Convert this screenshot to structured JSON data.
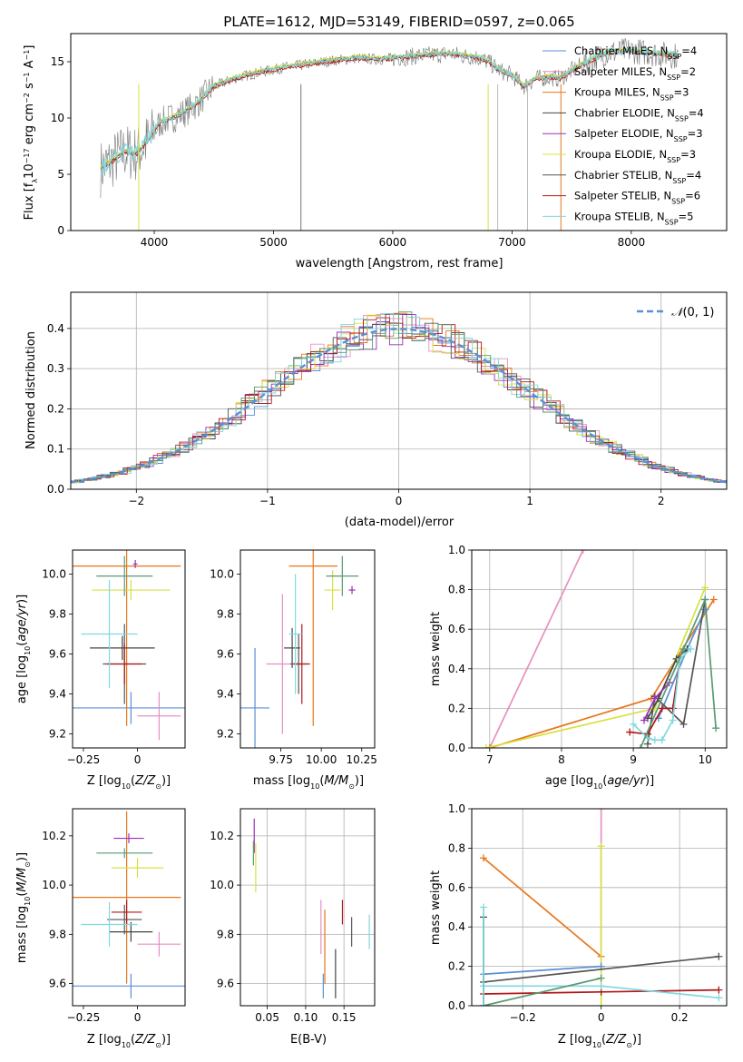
{
  "title": "PLATE=1612, MJD=53149, FIBERID=0597, z=0.065",
  "colors": {
    "Chabrier MILES": "#5b8fd8",
    "Salpeter MILES": "#e88fc0",
    "Kroupa MILES": "#e8761a",
    "Chabrier ELODIE": "#444444",
    "Salpeter ELODIE": "#9b30b8",
    "Kroupa ELODIE": "#d8e040",
    "Chabrier STELIB": "#555555",
    "Salpeter STELIB": "#b01818",
    "Kroupa STELIB": "#80d8e0",
    "green": "#5a9a70",
    "normal": "#5b8fd8"
  },
  "chart_data": [
    {
      "id": "spectrum",
      "type": "line",
      "xlabel": "wavelength [Angstrom, rest frame]",
      "ylabel": "Flux [f_λ10^-17 erg cm^-2 s^-1 A^-1]",
      "xlim": [
        3300,
        8800
      ],
      "ylim": [
        0,
        17.5
      ],
      "xticks": [
        4000,
        5000,
        6000,
        7000,
        8000
      ],
      "yticks": [
        0,
        5,
        10,
        15
      ],
      "legend_position": "right",
      "legend": [
        {
          "label": "Chabrier MILES, N_SSP=4",
          "color": "#5b8fd8"
        },
        {
          "label": "Salpeter MILES, N_SSP=2",
          "color": "#e88fc0"
        },
        {
          "label": "Kroupa MILES, N_SSP=3",
          "color": "#e8761a"
        },
        {
          "label": "Chabrier ELODIE, N_SSP=4",
          "color": "#444444"
        },
        {
          "label": "Salpeter ELODIE, N_SSP=3",
          "color": "#9b30b8"
        },
        {
          "label": "Kroupa ELODIE, N_SSP=3",
          "color": "#d8e040"
        },
        {
          "label": "Chabrier STELIB, N_SSP=4",
          "color": "#555555"
        },
        {
          "label": "Salpeter STELIB, N_SSP=6",
          "color": "#b01818"
        },
        {
          "label": "Kroupa STELIB, N_SSP=5",
          "color": "#80d8e0"
        }
      ],
      "model_curve": {
        "x": [
          3550,
          3650,
          3750,
          3850,
          3950,
          4050,
          4150,
          4250,
          4350,
          4500,
          4700,
          4900,
          5100,
          5300,
          5500,
          5700,
          5900,
          6100,
          6300,
          6500,
          6600,
          6700,
          6800,
          6900,
          7000,
          7100,
          7200,
          7300,
          7400,
          7500,
          7600,
          7800,
          8000,
          8200,
          8400
        ],
        "y": [
          5.5,
          6.2,
          7.0,
          6.8,
          8.0,
          9.6,
          10.0,
          10.5,
          11.2,
          12.8,
          13.6,
          14.1,
          14.5,
          14.8,
          15.1,
          15.3,
          15.2,
          15.4,
          15.6,
          15.7,
          15.5,
          15.4,
          15.0,
          14.2,
          13.8,
          12.8,
          13.5,
          13.6,
          13.5,
          14.2,
          14.8,
          15.8,
          16.0,
          15.7,
          15.5
        ]
      }
    },
    {
      "id": "residuals",
      "type": "line",
      "xlabel": "(data-model)/error",
      "ylabel": "Normed distribution",
      "xlim": [
        -2.5,
        2.5
      ],
      "ylim": [
        0,
        0.49
      ],
      "xticks": [
        -2,
        -1,
        0,
        1,
        2
      ],
      "yticks": [
        0.0,
        0.1,
        0.2,
        0.3,
        0.4
      ],
      "legend": [
        {
          "label": "𝒩(0, 1)",
          "style": "dashed",
          "color": "#5b8fd8"
        }
      ],
      "legend_position": "upper right",
      "grid": true,
      "histogram_bin_width": 0.1
    },
    {
      "id": "age-vs-Z",
      "type": "scatter",
      "xlabel": "Z [log10(Z/Z⊙)]",
      "ylabel": "age  [log10(age/yr)]",
      "xlim": [
        -0.3,
        0.22
      ],
      "ylim": [
        9.13,
        10.12
      ],
      "xticks": [
        -0.25,
        0.0
      ],
      "yticks": [
        9.2,
        9.4,
        9.6,
        9.8,
        10.0
      ],
      "points": [
        {
          "model": "Chabrier MILES",
          "x": -0.03,
          "y": 9.33,
          "xerr": 0.28,
          "yerr": 0.08
        },
        {
          "model": "Salpeter MILES",
          "x": 0.1,
          "y": 9.29,
          "xerr": 0.1,
          "yerr": 0.12
        },
        {
          "model": "Kroupa MILES",
          "x": -0.05,
          "y": 10.04,
          "xerr": 0.25,
          "yerr": 0.8
        },
        {
          "model": "Chabrier ELODIE",
          "x": -0.07,
          "y": 9.63,
          "xerr": 0.15,
          "yerr": 0.06
        },
        {
          "model": "Salpeter ELODIE",
          "x": -0.01,
          "y": 10.05,
          "xerr": 0.01,
          "yerr": 0.02
        },
        {
          "model": "Kroupa ELODIE",
          "x": -0.03,
          "y": 9.92,
          "xerr": 0.18,
          "yerr": 0.05
        },
        {
          "model": "Chabrier STELIB",
          "x": -0.06,
          "y": 9.55,
          "xerr": 0.1,
          "yerr": 0.2
        },
        {
          "model": "Salpeter STELIB",
          "x": -0.06,
          "y": 9.55,
          "xerr": 0.08,
          "yerr": 0.1
        },
        {
          "model": "Kroupa STELIB",
          "x": -0.13,
          "y": 9.7,
          "xerr": 0.13,
          "yerr": 0.27
        },
        {
          "model": "green",
          "x": -0.06,
          "y": 9.99,
          "xerr": 0.13,
          "yerr": 0.1
        }
      ]
    },
    {
      "id": "age-vs-mass",
      "type": "scatter",
      "xlabel": "mass [log10(M/M⊙)]",
      "ylabel": "",
      "xlim": [
        9.5,
        10.33
      ],
      "ylim": [
        9.13,
        10.12
      ],
      "xticks": [
        9.75,
        10.0,
        10.25
      ],
      "xtick_labels": [
        "9.75",
        "10.00",
        "10.25"
      ],
      "yticks": [
        9.2,
        9.4,
        9.6,
        9.8,
        10.0
      ],
      "points": [
        {
          "model": "Chabrier MILES",
          "x": 9.59,
          "y": 9.33,
          "xerr": 0.09,
          "yerr": 0.3
        },
        {
          "model": "Salpeter MILES",
          "x": 9.76,
          "y": 9.55,
          "xerr": 0.1,
          "yerr": 0.35
        },
        {
          "model": "Kroupa MILES",
          "x": 9.95,
          "y": 10.04,
          "xerr": 0.15,
          "yerr": 0.8
        },
        {
          "model": "Chabrier ELODIE",
          "x": 9.82,
          "y": 9.63,
          "xerr": 0.05,
          "yerr": 0.1
        },
        {
          "model": "Salpeter ELODIE",
          "x": 10.19,
          "y": 9.92,
          "xerr": 0.02,
          "yerr": 0.02
        },
        {
          "model": "Kroupa ELODIE",
          "x": 10.07,
          "y": 9.92,
          "xerr": 0.05,
          "yerr": 0.1
        },
        {
          "model": "Chabrier STELIB",
          "x": 9.86,
          "y": 9.55,
          "xerr": 0.05,
          "yerr": 0.15
        },
        {
          "model": "Salpeter STELIB",
          "x": 9.88,
          "y": 9.55,
          "xerr": 0.05,
          "yerr": 0.2
        },
        {
          "model": "Kroupa STELIB",
          "x": 9.84,
          "y": 9.7,
          "xerr": 0.04,
          "yerr": 0.3
        },
        {
          "model": "green",
          "x": 10.13,
          "y": 9.99,
          "xerr": 0.1,
          "yerr": 0.1
        }
      ]
    },
    {
      "id": "weight-vs-age",
      "type": "line",
      "xlabel": "age  [log10(age/yr)]",
      "ylabel": "mass weight",
      "xlim": [
        6.75,
        10.3
      ],
      "ylim": [
        0,
        1
      ],
      "xticks": [
        7,
        8,
        9,
        10
      ],
      "yticks": [
        0.0,
        0.2,
        0.4,
        0.6,
        0.8,
        1.0
      ],
      "grid": true,
      "series": [
        {
          "model": "Salpeter MILES",
          "x": [
            7.0,
            8.3
          ],
          "y": [
            0.0,
            1.0
          ]
        },
        {
          "model": "Kroupa MILES",
          "x": [
            7.0,
            9.25,
            10.12
          ],
          "y": [
            0.0,
            0.25,
            0.75
          ]
        },
        {
          "model": "Kroupa ELODIE",
          "x": [
            6.95,
            9.3,
            10.0
          ],
          "y": [
            0.0,
            0.2,
            0.81
          ]
        },
        {
          "model": "Chabrier MILES",
          "x": [
            9.35,
            9.75,
            10.0
          ],
          "y": [
            0.15,
            0.5,
            0.7
          ]
        },
        {
          "model": "Chabrier ELODIE",
          "x": [
            9.2,
            9.35,
            9.6,
            9.75
          ],
          "y": [
            0.15,
            0.25,
            0.45,
            0.5
          ]
        },
        {
          "model": "Chabrier STELIB",
          "x": [
            9.2,
            9.3,
            9.7,
            10.0
          ],
          "y": [
            0.02,
            0.26,
            0.12,
            0.75
          ]
        },
        {
          "model": "Salpeter STELIB",
          "x": [
            8.95,
            9.2,
            9.4,
            9.55,
            9.65
          ],
          "y": [
            0.08,
            0.07,
            0.2,
            0.2,
            0.45
          ]
        },
        {
          "model": "Salpeter ELODIE",
          "x": [
            9.15,
            9.3,
            9.5
          ],
          "y": [
            0.14,
            0.25,
            0.33
          ]
        },
        {
          "model": "Kroupa STELIB",
          "x": [
            9.0,
            9.2,
            9.3,
            9.4,
            9.55,
            9.65,
            9.8
          ],
          "y": [
            0.12,
            0.05,
            0.04,
            0.04,
            0.14,
            0.45,
            0.5
          ]
        },
        {
          "model": "green",
          "x": [
            9.1,
            9.7,
            10.0,
            10.15
          ],
          "y": [
            0.0,
            0.5,
            0.75,
            0.1
          ]
        }
      ]
    },
    {
      "id": "mass-vs-Z",
      "type": "scatter",
      "xlabel": "Z [log10(Z/Z⊙)]",
      "ylabel": "mass [log10(M/M⊙)]",
      "xlim": [
        -0.3,
        0.22
      ],
      "ylim": [
        9.51,
        10.31
      ],
      "xticks": [
        -0.25,
        0.0
      ],
      "yticks": [
        9.6,
        9.8,
        10.0,
        10.2
      ],
      "points": [
        {
          "model": "Chabrier MILES",
          "x": -0.03,
          "y": 9.59,
          "xerr": 0.28,
          "yerr": 0.05
        },
        {
          "model": "Salpeter MILES",
          "x": 0.1,
          "y": 9.76,
          "xerr": 0.1,
          "yerr": 0.05
        },
        {
          "model": "Kroupa MILES",
          "x": -0.05,
          "y": 9.95,
          "xerr": 0.25,
          "yerr": 0.35
        },
        {
          "model": "Chabrier ELODIE",
          "x": -0.03,
          "y": 9.81,
          "xerr": 0.1,
          "yerr": 0.04
        },
        {
          "model": "Salpeter ELODIE",
          "x": -0.04,
          "y": 10.19,
          "xerr": 0.07,
          "yerr": 0.02
        },
        {
          "model": "Kroupa ELODIE",
          "x": -0.0,
          "y": 10.07,
          "xerr": 0.12,
          "yerr": 0.04
        },
        {
          "model": "Chabrier STELIB",
          "x": -0.06,
          "y": 9.86,
          "xerr": 0.08,
          "yerr": 0.06
        },
        {
          "model": "Salpeter STELIB",
          "x": -0.05,
          "y": 9.89,
          "xerr": 0.07,
          "yerr": 0.05
        },
        {
          "model": "Kroupa STELIB",
          "x": -0.13,
          "y": 9.84,
          "xerr": 0.13,
          "yerr": 0.09
        },
        {
          "model": "green",
          "x": -0.06,
          "y": 10.13,
          "xerr": 0.13,
          "yerr": 0.02
        }
      ]
    },
    {
      "id": "mass-vs-EBV",
      "type": "scatter",
      "xlabel": "E(B-V)",
      "ylabel": "",
      "xlim": [
        0.015,
        0.19
      ],
      "ylim": [
        9.51,
        10.31
      ],
      "xticks": [
        0.05,
        0.1,
        0.15
      ],
      "xtick_labels": [
        "0.05",
        "0.10",
        "0.15"
      ],
      "yticks": [
        9.6,
        9.8,
        10.0,
        10.2
      ],
      "grid": true,
      "points": [
        {
          "model": "Chabrier MILES",
          "x": 0.123,
          "y": 9.59,
          "yerr": 0.05
        },
        {
          "model": "Salpeter MILES",
          "x": 0.12,
          "y": 9.83,
          "yerr": 0.11
        },
        {
          "model": "Kroupa MILES",
          "x": 0.125,
          "y": 9.75,
          "yerr": 0.15
        },
        {
          "model": "Chabrier ELODIE",
          "x": 0.139,
          "y": 9.64,
          "yerr": 0.1
        },
        {
          "model": "Salpeter ELODIE",
          "x": 0.033,
          "y": 10.2,
          "yerr": 0.07
        },
        {
          "model": "Kroupa ELODIE",
          "x": 0.035,
          "y": 10.07,
          "yerr": 0.1
        },
        {
          "model": "Chabrier STELIB",
          "x": 0.16,
          "y": 9.81,
          "yerr": 0.06
        },
        {
          "model": "Salpeter STELIB",
          "x": 0.148,
          "y": 9.89,
          "yerr": 0.05
        },
        {
          "model": "Kroupa STELIB",
          "x": 0.183,
          "y": 9.81,
          "yerr": 0.07
        },
        {
          "model": "green",
          "x": 0.032,
          "y": 10.13,
          "yerr": 0.05
        }
      ]
    },
    {
      "id": "weight-vs-Z",
      "type": "line",
      "xlabel": "Z [log10(Z/Z⊙)]",
      "ylabel": "mass weight",
      "xlim": [
        -0.33,
        0.32
      ],
      "ylim": [
        0,
        1
      ],
      "xticks": [
        -0.2,
        0.0,
        0.2
      ],
      "yticks": [
        0.0,
        0.2,
        0.4,
        0.6,
        0.8,
        1.0
      ],
      "grid": true,
      "series": [
        {
          "model": "Kroupa MILES",
          "x": [
            -0.3,
            0.0
          ],
          "y": [
            0.75,
            0.25
          ]
        },
        {
          "model": "Salpeter MILES",
          "x": [
            0.0,
            0.0
          ],
          "y": [
            0.2,
            1.0
          ]
        },
        {
          "model": "Kroupa ELODIE",
          "x": [
            0.0,
            0.0
          ],
          "y": [
            0.0,
            0.81
          ]
        },
        {
          "model": "Chabrier MILES",
          "x": [
            -0.3,
            0.0
          ],
          "y": [
            0.16,
            0.2
          ]
        },
        {
          "model": "Chabrier STELIB",
          "x": [
            -0.3,
            0.3
          ],
          "y": [
            0.12,
            0.25
          ]
        },
        {
          "model": "Salpeter STELIB",
          "x": [
            -0.3,
            0.0,
            0.3
          ],
          "y": [
            0.06,
            0.07,
            0.08
          ]
        },
        {
          "model": "Kroupa STELIB",
          "x": [
            -0.3,
            0.0,
            0.3
          ],
          "y": [
            0.1,
            0.1,
            0.04
          ]
        },
        {
          "model": "green",
          "x": [
            -0.3,
            0.0
          ],
          "y": [
            0.0,
            0.14
          ]
        },
        {
          "model": "Chabrier ELODIE",
          "x": [
            -0.3,
            -0.3
          ],
          "y": [
            0.0,
            0.45
          ]
        },
        {
          "model": "Kroupa STELIB",
          "x": [
            -0.3,
            -0.3
          ],
          "y": [
            0.0,
            0.5
          ]
        }
      ]
    }
  ]
}
